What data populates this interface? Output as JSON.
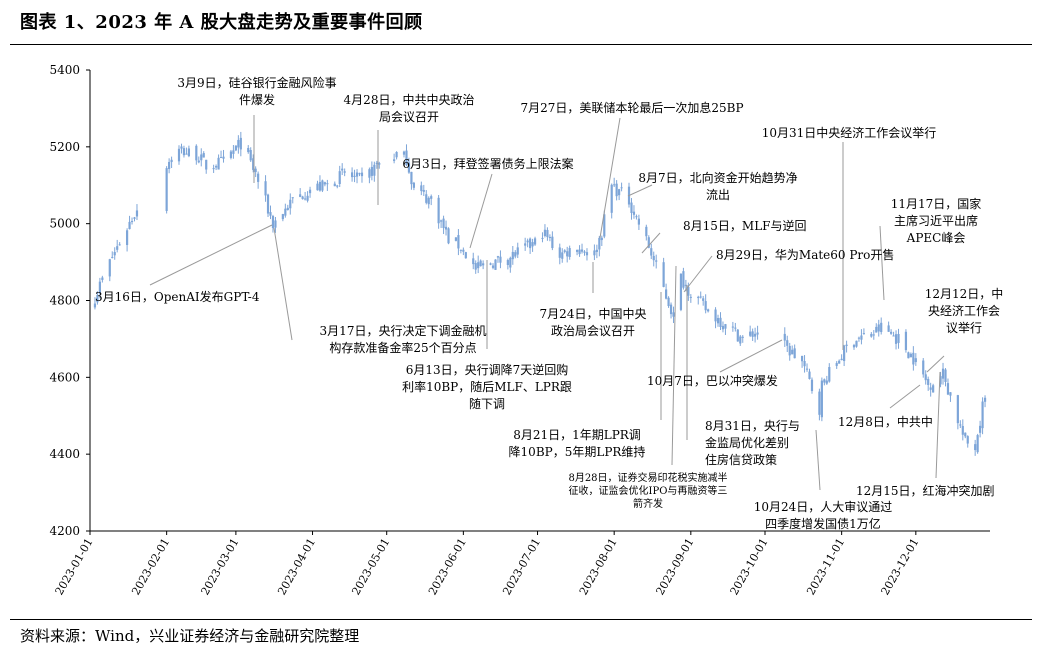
{
  "title": "图表 1、2023 年 A 股大盘走势及重要事件回顾",
  "source": "资料来源：Wind，兴业证券经济与金融研究院整理",
  "colors": {
    "candle": "#7DA5D8",
    "text": "#000000",
    "axis": "#000000"
  },
  "chart_data": {
    "type": "candlestick",
    "title": "",
    "xlabel": "",
    "ylabel": "",
    "ylim": [
      4200,
      5400
    ],
    "yticks": [
      "4200",
      "4400",
      "4600",
      "4800",
      "5000",
      "5200",
      "5400"
    ],
    "xticks": [
      "2023-01-01",
      "2023-02-01",
      "2023-03-01",
      "2023-04-01",
      "2023-05-01",
      "2023-06-01",
      "2023-07-01",
      "2023-08-01",
      "2023-09-01",
      "2023-10-01",
      "2023-11-01",
      "2023-12-01"
    ],
    "grid": false,
    "legend": "none",
    "approx_close_series": [
      [
        "2023-01-03",
        4810
      ],
      [
        "2023-01-09",
        4900
      ],
      [
        "2023-01-16",
        4990
      ],
      [
        "2023-01-20",
        5040
      ],
      [
        "2023-01-31",
        5150
      ],
      [
        "2023-02-06",
        5190
      ],
      [
        "2023-02-13",
        5180
      ],
      [
        "2023-02-17",
        5150
      ],
      [
        "2023-02-24",
        5160
      ],
      [
        "2023-03-03",
        5210
      ],
      [
        "2023-03-09",
        5130
      ],
      [
        "2023-03-16",
        5000
      ],
      [
        "2023-03-24",
        5060
      ],
      [
        "2023-03-31",
        5090
      ],
      [
        "2023-04-07",
        5100
      ],
      [
        "2023-04-14",
        5130
      ],
      [
        "2023-04-21",
        5110
      ],
      [
        "2023-04-28",
        5160
      ],
      [
        "2023-05-05",
        5180
      ],
      [
        "2023-05-09",
        5170
      ],
      [
        "2023-05-12",
        5090
      ],
      [
        "2023-05-19",
        5060
      ],
      [
        "2023-05-26",
        4960
      ],
      [
        "2023-05-31",
        4940
      ],
      [
        "2023-06-06",
        4880
      ],
      [
        "2023-06-13",
        4900
      ],
      [
        "2023-06-19",
        4910
      ],
      [
        "2023-06-30",
        4950
      ],
      [
        "2023-07-03",
        4980
      ],
      [
        "2023-07-10",
        4920
      ],
      [
        "2023-07-17",
        4940
      ],
      [
        "2023-07-24",
        4920
      ],
      [
        "2023-07-27",
        4980
      ],
      [
        "2023-07-31",
        5100
      ],
      [
        "2023-08-07",
        5060
      ],
      [
        "2023-08-15",
        4940
      ],
      [
        "2023-08-21",
        4830
      ],
      [
        "2023-08-25",
        4760
      ],
      [
        "2023-08-28",
        4860
      ],
      [
        "2023-08-31",
        4830
      ],
      [
        "2023-09-08",
        4770
      ],
      [
        "2023-09-15",
        4740
      ],
      [
        "2023-09-22",
        4700
      ],
      [
        "2023-09-28",
        4720
      ],
      [
        "2023-10-09",
        4680
      ],
      [
        "2023-10-16",
        4640
      ],
      [
        "2023-10-23",
        4520
      ],
      [
        "2023-10-24",
        4580
      ],
      [
        "2023-10-31",
        4650
      ],
      [
        "2023-11-06",
        4700
      ],
      [
        "2023-11-13",
        4710
      ],
      [
        "2023-11-17",
        4730
      ],
      [
        "2023-11-24",
        4700
      ],
      [
        "2023-11-30",
        4650
      ],
      [
        "2023-12-06",
        4580
      ],
      [
        "2023-12-12",
        4610
      ],
      [
        "2023-12-15",
        4550
      ],
      [
        "2023-12-21",
        4430
      ],
      [
        "2023-12-25",
        4420
      ],
      [
        "2023-12-29",
        4560
      ]
    ],
    "annotations": [
      {
        "date": "2023-03-09",
        "text": [
          "3月9日，硅谷银行金融风险事",
          "件爆发"
        ]
      },
      {
        "date": "2023-03-16",
        "text": [
          "3月16日，OpenAI发布GPT-4"
        ]
      },
      {
        "date": "2023-03-17",
        "text": [
          "3月17日，央行决定下调金融机",
          "构存款准备金率25个百分点"
        ]
      },
      {
        "date": "2023-04-28",
        "text": [
          "4月28日，中共中央政治",
          "局会议召开"
        ]
      },
      {
        "date": "2023-06-03",
        "text": [
          "6月3日，拜登签署债务上限法案"
        ]
      },
      {
        "date": "2023-06-13",
        "text": [
          "6月13日，央行调降7天逆回购",
          "利率10BP，随后MLF、LPR跟",
          "随下调"
        ]
      },
      {
        "date": "2023-07-24",
        "text": [
          "7月24日，中国中央",
          "政治局会议召开"
        ]
      },
      {
        "date": "2023-07-27",
        "text": [
          "7月27日，美联储本轮最后一次加息25BP"
        ]
      },
      {
        "date": "2023-08-07",
        "text": [
          "8月7日，北向资金开始趋势净",
          "流出"
        ]
      },
      {
        "date": "2023-08-15",
        "text": [
          "8月15日，MLF与逆回"
        ]
      },
      {
        "date": "2023-08-21",
        "text": [
          "8月21日，1年期LPR调",
          "降10BP，5年期LPR维持"
        ]
      },
      {
        "date": "2023-08-28",
        "text": [
          "8月28日，证券交易印花税实施减半",
          "征收，证监会优化IPO与再融资等三",
          "箭齐发"
        ]
      },
      {
        "date": "2023-08-29",
        "text": [
          "8月29日，华为Mate60 Pro开售"
        ]
      },
      {
        "date": "2023-08-31",
        "text": [
          "8月31日，央行与",
          "金监局优化差别",
          "住房信贷政策"
        ]
      },
      {
        "date": "2023-10-07",
        "text": [
          "10月7日，巴以冲突爆发"
        ]
      },
      {
        "date": "2023-10-24",
        "text": [
          "10月24日，人大审议通过",
          "四季度增发国债1万亿"
        ]
      },
      {
        "date": "2023-10-31",
        "text": [
          "10月31日中央经济工作会议举行"
        ]
      },
      {
        "date": "2023-11-17",
        "text": [
          "11月17日，国家",
          "主席习近平出席",
          "APEC峰会"
        ]
      },
      {
        "date": "2023-12-08",
        "text": [
          "12月8日，中共中"
        ]
      },
      {
        "date": "2023-12-12",
        "text": [
          "12月12日，中",
          "央经济工作会",
          "议举行"
        ]
      },
      {
        "date": "2023-12-15",
        "text": [
          "12月15日，红海冲突加剧"
        ]
      }
    ]
  }
}
